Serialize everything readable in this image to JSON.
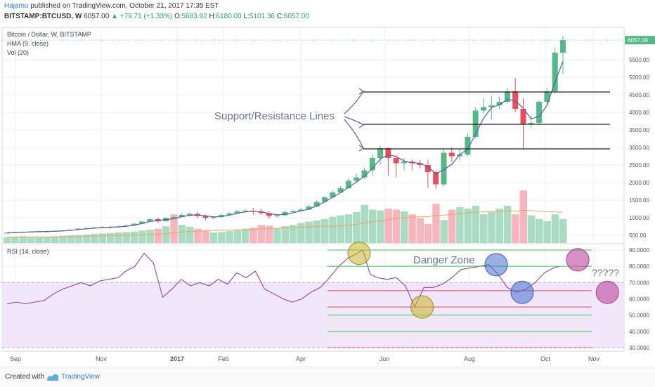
{
  "header": {
    "user": "Hajamu",
    "published_text": "published on TradingView.com, October 21, 2017 17:35 EST",
    "symbol": "BITSTAMP:BTCUSD, W",
    "last": "6057.00",
    "change_arrow": "▲",
    "change": "+79.71 (+1.33%)",
    "o_label": "O:",
    "o_value": "5683.92",
    "h_label": "H:",
    "h_value": "6180.00",
    "l_label": "L:",
    "l_value": "5101.36",
    "c_label": "C:",
    "c_value": "6057.00"
  },
  "footer": {
    "created_with": "Created with",
    "brand": "TradingView"
  },
  "colors": {
    "bull": "#53b987",
    "bear": "#eb4d5c",
    "bull_vol": "#a9dcc3",
    "bear_vol": "#f5b7bd",
    "hma": "#5b5ea6",
    "rsi_line": "#8e44ad",
    "rsi_band": "#f2e6fb",
    "vol_ma": "#f4a259",
    "green_lines": "#2ecc40",
    "red_lines": "#e8465b"
  },
  "chart_data": [
    {
      "type": "candlestick",
      "title": "Bitcoin / Dollar, W, BITSTAMP",
      "indicators": [
        "HMA (9, close)",
        "Vol (20)"
      ],
      "x_tick_labels": [
        "Sep",
        "Nov",
        "2017",
        "Feb",
        "Apr",
        "Jun",
        "Aug",
        "Oct",
        "Nov"
      ],
      "y_tick_labels": [
        "500.00",
        "1000.00",
        "1500.00",
        "2000.00",
        "2500.00",
        "3000.00",
        "3500.00",
        "4000.00",
        "4500.00",
        "5000.00",
        "5500.00"
      ],
      "ylim": [
        400,
        6300
      ],
      "last_price_label": "6057.00",
      "candles": [
        [
          575,
          575,
          585,
          570
        ],
        [
          575,
          585,
          595,
          570
        ],
        [
          585,
          600,
          610,
          580
        ],
        [
          600,
          605,
          612,
          595
        ],
        [
          605,
          610,
          620,
          600
        ],
        [
          610,
          610,
          625,
          600
        ],
        [
          610,
          625,
          635,
          605
        ],
        [
          625,
          640,
          650,
          620
        ],
        [
          640,
          660,
          670,
          630
        ],
        [
          660,
          690,
          700,
          650
        ],
        [
          690,
          700,
          720,
          680
        ],
        [
          700,
          720,
          740,
          690
        ],
        [
          720,
          740,
          760,
          710
        ],
        [
          740,
          730,
          770,
          700
        ],
        [
          730,
          750,
          780,
          720
        ],
        [
          750,
          780,
          800,
          740
        ],
        [
          780,
          830,
          850,
          770
        ],
        [
          830,
          890,
          910,
          820
        ],
        [
          890,
          960,
          980,
          880
        ],
        [
          960,
          900,
          1000,
          860
        ],
        [
          900,
          990,
          1010,
          890
        ],
        [
          990,
          1020,
          1060,
          980
        ],
        [
          1020,
          1080,
          1130,
          1010
        ],
        [
          1080,
          1110,
          1150,
          1040
        ],
        [
          1110,
          1050,
          1170,
          1000
        ],
        [
          1050,
          1000,
          1090,
          930
        ],
        [
          1000,
          1020,
          1050,
          950
        ],
        [
          1020,
          1080,
          1120,
          990
        ],
        [
          1080,
          1120,
          1160,
          1050
        ],
        [
          1120,
          1180,
          1220,
          1100
        ],
        [
          1180,
          1200,
          1250,
          1150
        ],
        [
          1200,
          1180,
          1280,
          1080
        ],
        [
          1180,
          1130,
          1260,
          1080
        ],
        [
          1130,
          1050,
          1180,
          980
        ],
        [
          1050,
          1070,
          1110,
          1010
        ],
        [
          1070,
          1160,
          1200,
          1050
        ],
        [
          1160,
          1190,
          1230,
          1140
        ],
        [
          1190,
          1230,
          1280,
          1170
        ],
        [
          1230,
          1320,
          1360,
          1220
        ],
        [
          1320,
          1450,
          1500,
          1310
        ],
        [
          1450,
          1580,
          1630,
          1430
        ],
        [
          1580,
          1720,
          1780,
          1560
        ],
        [
          1720,
          1840,
          1900,
          1700
        ],
        [
          1840,
          2050,
          2120,
          1820
        ],
        [
          2050,
          2150,
          2250,
          2000
        ],
        [
          2150,
          2350,
          2420,
          2100
        ],
        [
          2350,
          2700,
          2800,
          2200
        ],
        [
          2700,
          2980,
          3050,
          2500
        ],
        [
          2980,
          2700,
          3000,
          2200
        ],
        [
          2700,
          2550,
          2800,
          2150
        ],
        [
          2550,
          2600,
          2700,
          2350
        ],
        [
          2600,
          2550,
          2650,
          2350
        ],
        [
          2550,
          2500,
          2650,
          2400
        ],
        [
          2500,
          2300,
          2650,
          1850
        ],
        [
          2300,
          1950,
          2350,
          1830
        ],
        [
          1950,
          2850,
          2950,
          1900
        ],
        [
          2850,
          2750,
          3000,
          2600
        ],
        [
          2750,
          2800,
          2950,
          2650
        ],
        [
          2800,
          3300,
          3400,
          2750
        ],
        [
          3300,
          4050,
          4150,
          3250
        ],
        [
          4050,
          4150,
          4400,
          3950
        ],
        [
          4150,
          4200,
          4480,
          3800
        ],
        [
          4200,
          4300,
          4450,
          4100
        ],
        [
          4300,
          4600,
          4700,
          4250
        ],
        [
          4600,
          4100,
          4980,
          4000
        ],
        [
          4100,
          3650,
          4400,
          2960
        ],
        [
          3650,
          3700,
          3900,
          3550
        ],
        [
          3700,
          4300,
          4350,
          3650
        ],
        [
          4300,
          4600,
          4700,
          4200
        ],
        [
          4600,
          5700,
          5850,
          4550
        ],
        [
          5700,
          6057,
          6180,
          5101
        ]
      ],
      "volume_mil": [
        12,
        13,
        14,
        12,
        12,
        13,
        14,
        15,
        16,
        17,
        18,
        19,
        20,
        21,
        22,
        23,
        24,
        26,
        28,
        30,
        35,
        60,
        38,
        34,
        30,
        26,
        22,
        23,
        25,
        27,
        30,
        32,
        38,
        36,
        30,
        35,
        38,
        42,
        45,
        47,
        50,
        55,
        58,
        60,
        65,
        80,
        70,
        68,
        72,
        70,
        66,
        60,
        52,
        40,
        82,
        48,
        70,
        75,
        72,
        78,
        60,
        65,
        72,
        78,
        60,
        110,
        58,
        50,
        46,
        60,
        50
      ],
      "volume_bull": [
        1,
        1,
        1,
        1,
        1,
        1,
        1,
        1,
        1,
        1,
        1,
        1,
        1,
        1,
        1,
        1,
        1,
        1,
        1,
        0,
        1,
        0,
        1,
        1,
        0,
        0,
        1,
        1,
        1,
        1,
        1,
        0,
        0,
        0,
        1,
        1,
        1,
        1,
        1,
        1,
        1,
        1,
        1,
        1,
        1,
        1,
        1,
        1,
        0,
        0,
        1,
        0,
        0,
        0,
        0,
        1,
        0,
        1,
        1,
        1,
        1,
        1,
        1,
        1,
        0,
        0,
        1,
        1,
        1,
        1,
        1
      ],
      "support_resistance_label": "Support/Resistance Lines",
      "support_resistance_levels": [
        2960,
        3660,
        4580
      ]
    },
    {
      "type": "line",
      "title": "RSI (14, close)",
      "y_tick_labels": [
        "30.0000",
        "40.0000",
        "50.0000",
        "60.0000",
        "70.0000",
        "80.0000",
        "90.0000"
      ],
      "ylim": [
        26,
        91.5
      ],
      "overbought_band": [
        30,
        70
      ],
      "rsi": [
        [
          0,
          57
        ],
        [
          5,
          58
        ],
        [
          10,
          57
        ],
        [
          15,
          58
        ],
        [
          20,
          59
        ],
        [
          25,
          63
        ],
        [
          30,
          66
        ],
        [
          35,
          68
        ],
        [
          40,
          70
        ],
        [
          45,
          68
        ],
        [
          50,
          71
        ],
        [
          55,
          72
        ],
        [
          60,
          73
        ],
        [
          64,
          77
        ],
        [
          69,
          80
        ],
        [
          74,
          88
        ],
        [
          79,
          82
        ],
        [
          84,
          61
        ],
        [
          89,
          66
        ],
        [
          94,
          72
        ],
        [
          99,
          68
        ],
        [
          104,
          70
        ],
        [
          109,
          68
        ],
        [
          114,
          72
        ],
        [
          119,
          69
        ],
        [
          124,
          76
        ],
        [
          129,
          73
        ],
        [
          134,
          77
        ],
        [
          139,
          66
        ],
        [
          144,
          63
        ],
        [
          149,
          60
        ],
        [
          154,
          58
        ],
        [
          159,
          60
        ],
        [
          164,
          64
        ],
        [
          169,
          67
        ],
        [
          174,
          73
        ],
        [
          179,
          80
        ],
        [
          184,
          85
        ],
        [
          189,
          88
        ],
        [
          192,
          90
        ],
        [
          196,
          75
        ],
        [
          200,
          73
        ],
        [
          205,
          72
        ],
        [
          210,
          73
        ],
        [
          215,
          68
        ],
        [
          220,
          55
        ],
        [
          225,
          67
        ],
        [
          230,
          67
        ],
        [
          235,
          69
        ],
        [
          240,
          73
        ],
        [
          245,
          78
        ],
        [
          250,
          79
        ],
        [
          255,
          80
        ],
        [
          260,
          81
        ],
        [
          265,
          75
        ],
        [
          270,
          67
        ],
        [
          275,
          64
        ],
        [
          280,
          66
        ],
        [
          285,
          70
        ],
        [
          290,
          76
        ],
        [
          295,
          79
        ],
        [
          298,
          80
        ]
      ],
      "green_levels": [
        90,
        80,
        50,
        40
      ],
      "red_levels": [
        65,
        55,
        30
      ],
      "danger_zone_label": "Danger Zone",
      "question_label": "?????",
      "circles": [
        {
          "x": 190,
          "y": 88,
          "color": "yellow"
        },
        {
          "x": 224,
          "y": 55,
          "color": "yellow"
        },
        {
          "x": 264,
          "y": 81,
          "color": "blue"
        },
        {
          "x": 278,
          "y": 64,
          "color": "blue"
        },
        {
          "x": 308,
          "y": 84,
          "color": "pink"
        },
        {
          "x": 324,
          "y": 64,
          "color": "pink"
        }
      ]
    }
  ]
}
